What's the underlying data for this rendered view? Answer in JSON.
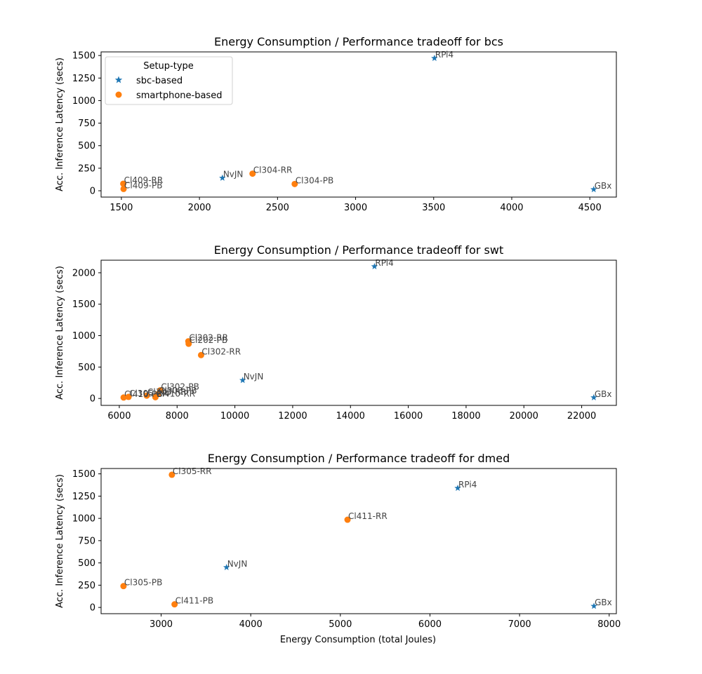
{
  "legend": {
    "title": "Setup-type",
    "entries": [
      {
        "name": "sbc-based",
        "color": "#1f77b4",
        "marker": "star"
      },
      {
        "name": "smartphone-based",
        "color": "#ff7f0e",
        "marker": "circle"
      }
    ],
    "placement": "upper-left of first subplot"
  },
  "xlabel": "Energy Consumption (total Joules)",
  "chart_data": [
    {
      "type": "scatter",
      "title": "Energy Consumption / Performance tradeoff for bcs",
      "xlabel": "",
      "ylabel": "Acc. Inference Latency (secs)",
      "xlim": [
        1370,
        4670
      ],
      "ylim": [
        -70,
        1540
      ],
      "xticks": [
        1500,
        2000,
        2500,
        3000,
        3500,
        4000,
        4500
      ],
      "yticks": [
        0,
        250,
        500,
        750,
        1000,
        1250,
        1500
      ],
      "series": [
        {
          "name": "sbc-based",
          "points": [
            {
              "label": "RPi4",
              "x": 3505,
              "y": 1470
            },
            {
              "label": "NvJN",
              "x": 2147,
              "y": 142
            },
            {
              "label": "GBx",
              "x": 4525,
              "y": 15
            }
          ]
        },
        {
          "name": "smartphone-based",
          "points": [
            {
              "label": "Cl409-RR",
              "x": 1512,
              "y": 78
            },
            {
              "label": "Cl409-PB",
              "x": 1514,
              "y": 20
            },
            {
              "label": "Cl304-RR",
              "x": 2340,
              "y": 190
            },
            {
              "label": "Cl304-PB",
              "x": 2610,
              "y": 75
            }
          ]
        }
      ]
    },
    {
      "type": "scatter",
      "title": "Energy Consumption / Performance tradeoff for swt",
      "xlabel": "",
      "ylabel": "Acc. Inference Latency (secs)",
      "xlim": [
        5370,
        23200
      ],
      "ylim": [
        -110,
        2200
      ],
      "xticks": [
        6000,
        8000,
        10000,
        12000,
        14000,
        16000,
        18000,
        20000,
        22000
      ],
      "yticks": [
        0,
        500,
        1000,
        1500,
        2000
      ],
      "series": [
        {
          "name": "sbc-based",
          "points": [
            {
              "label": "RPi4",
              "x": 14830,
              "y": 2100
            },
            {
              "label": "NvJN",
              "x": 10270,
              "y": 290
            },
            {
              "label": "GBx",
              "x": 22420,
              "y": 15
            }
          ]
        },
        {
          "name": "smartphone-based",
          "points": [
            {
              "label": "Cl202-RR",
              "x": 8390,
              "y": 910
            },
            {
              "label": "Cl202-PB",
              "x": 8400,
              "y": 870
            },
            {
              "label": "Cl302-RR",
              "x": 8830,
              "y": 690
            },
            {
              "label": "Cl302-PB",
              "x": 7420,
              "y": 130
            },
            {
              "label": "Cl303-PB",
              "x": 7340,
              "y": 70
            },
            {
              "label": "Cl303-RR",
              "x": 6950,
              "y": 45
            },
            {
              "label": "Cl410-RR",
              "x": 7250,
              "y": 20
            },
            {
              "label": "Cl410-PB",
              "x": 6150,
              "y": 15
            },
            {
              "label": "Cl305-RR",
              "x": 6320,
              "y": 25
            }
          ]
        }
      ]
    },
    {
      "type": "scatter",
      "title": "Energy Consumption / Performance tradeoff for dmed",
      "xlabel": "Energy Consumption (total Joules)",
      "ylabel": "Acc. Inference Latency (secs)",
      "xlim": [
        2330,
        8080
      ],
      "ylim": [
        -70,
        1560
      ],
      "xticks": [
        3000,
        4000,
        5000,
        6000,
        7000,
        8000
      ],
      "yticks": [
        0,
        250,
        500,
        750,
        1000,
        1250,
        1500
      ],
      "series": [
        {
          "name": "sbc-based",
          "points": [
            {
              "label": "RPi4",
              "x": 6310,
              "y": 1340
            },
            {
              "label": "NvJN",
              "x": 3730,
              "y": 450
            },
            {
              "label": "GBx",
              "x": 7830,
              "y": 15
            }
          ]
        },
        {
          "name": "smartphone-based",
          "points": [
            {
              "label": "Cl305-RR",
              "x": 3120,
              "y": 1490
            },
            {
              "label": "Cl411-RR",
              "x": 5080,
              "y": 985
            },
            {
              "label": "Cl305-PB",
              "x": 2580,
              "y": 240
            },
            {
              "label": "Cl411-PB",
              "x": 3150,
              "y": 35
            }
          ]
        }
      ]
    }
  ]
}
